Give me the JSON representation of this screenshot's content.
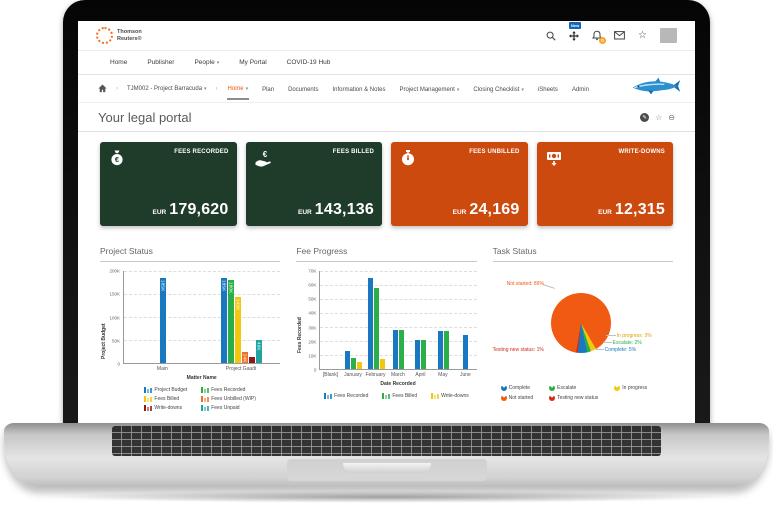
{
  "header": {
    "brand": {
      "line1": "Thomson",
      "line2": "Reuters®"
    },
    "new_badge": "New",
    "notification_count": "0"
  },
  "nav": {
    "items": [
      {
        "label": "Home"
      },
      {
        "label": "Publisher"
      },
      {
        "label": "People",
        "caret": true
      },
      {
        "label": "My Portal"
      },
      {
        "label": "COVID-19 Hub"
      }
    ]
  },
  "breadcrumb": {
    "project": "TJM002 - Project Barracuda",
    "tabs": [
      {
        "label": "Home",
        "caret": true,
        "active": true
      },
      {
        "label": "Plan"
      },
      {
        "label": "Documents"
      },
      {
        "label": "Information & Notes"
      },
      {
        "label": "Project Management",
        "caret": true
      },
      {
        "label": "Closing Checklist",
        "caret": true
      },
      {
        "label": "iSheets"
      },
      {
        "label": "Admin"
      }
    ]
  },
  "page": {
    "title": "Your legal portal"
  },
  "cards": [
    {
      "icon": "money-bag",
      "label": "FEES RECORDED",
      "currency": "EUR",
      "value": "179,620",
      "color": "#1f3b2a"
    },
    {
      "icon": "hand-euro",
      "label": "FEES BILLED",
      "currency": "EUR",
      "value": "143,136",
      "color": "#1f3b2a"
    },
    {
      "icon": "stopwatch",
      "label": "FEES UNBILLED",
      "currency": "EUR",
      "value": "24,169",
      "color": "#cc4a0d"
    },
    {
      "icon": "banknote-down",
      "label": "WRITE-DOWNS",
      "currency": "EUR",
      "value": "12,315",
      "color": "#cc4a0d"
    }
  ],
  "chart_data": [
    {
      "type": "bar",
      "title": "Project Status",
      "xlabel": "Matter Name",
      "ylabel": "Project Budget",
      "categories": [
        "Main",
        "Project Gaudi"
      ],
      "ymax": 200,
      "yticks": [
        "200K",
        "150K",
        "100K",
        "50K",
        "0"
      ],
      "legend_cols": 2,
      "series": [
        {
          "name": "Project Budget",
          "color": "#1879c0",
          "values": [
            185,
            185
          ],
          "labels": [
            "185K",
            "185K"
          ]
        },
        {
          "name": "Fees Recorded",
          "color": "#2cae49",
          "values": [
            0,
            180
          ],
          "labels": [
            "",
            "180K"
          ]
        },
        {
          "name": "Fees Billed",
          "color": "#f2c80f",
          "values": [
            0,
            143
          ],
          "labels": [
            "",
            "143K"
          ]
        },
        {
          "name": "Fees Unbilled (WIP)",
          "color": "#ee7028",
          "values": [
            0,
            24
          ],
          "labels": [
            "",
            "24K"
          ]
        },
        {
          "name": "Write-downs",
          "color": "#8f1717",
          "values": [
            0,
            12
          ],
          "labels": [
            "",
            ""
          ]
        },
        {
          "name": "Fees Unpaid",
          "color": "#1fa3a0",
          "values": [
            0,
            49
          ],
          "labels": [
            "",
            "49K"
          ]
        }
      ]
    },
    {
      "type": "bar",
      "title": "Fee Progress",
      "xlabel": "Date Recorded",
      "ylabel": "Fees Recorded",
      "categories": [
        "[Blank]",
        "January",
        "February",
        "March",
        "April",
        "May",
        "June"
      ],
      "ymax": 70,
      "yticks": [
        "70K",
        "60K",
        "50K",
        "40K",
        "30K",
        "20K",
        "10K",
        "0"
      ],
      "legend_cols": 3,
      "series": [
        {
          "name": "Fees Recorded",
          "color": "#1879c0",
          "values": [
            0,
            13,
            65,
            28,
            21,
            27,
            24
          ]
        },
        {
          "name": "Fees Billed",
          "color": "#2cae49",
          "values": [
            0,
            8,
            58,
            28,
            21,
            27,
            0
          ]
        },
        {
          "name": "Write-downs",
          "color": "#f2c80f",
          "values": [
            0,
            5,
            7,
            0,
            0,
            0,
            0
          ]
        }
      ]
    },
    {
      "type": "pie",
      "title": "Task Status",
      "start_angle": 150,
      "slices": [
        {
          "name": "In progress",
          "pct": 3,
          "color": "#f2c80f"
        },
        {
          "name": "Escalate",
          "pct": 2,
          "color": "#2cae49"
        },
        {
          "name": "Complete",
          "pct": 5,
          "color": "#1879c0"
        },
        {
          "name": "Testing new status",
          "pct": 1,
          "color": "#cf2d1b"
        },
        {
          "name": "Not started",
          "pct": 89,
          "color": "#f15a13"
        }
      ],
      "point_labels": [
        {
          "text": "Not started: 89%",
          "color": "#f15a13"
        },
        {
          "text": "In progress: 3%",
          "color": "#dda400"
        },
        {
          "text": "Escalate: 2%",
          "color": "#2cae49"
        },
        {
          "text": "Complete: 5%",
          "color": "#1879c0"
        },
        {
          "text": "Testing new status: 1%",
          "color": "#cf2d1b"
        }
      ],
      "legend": [
        {
          "name": "Complete",
          "color": "#1879c0"
        },
        {
          "name": "Escalate",
          "color": "#2cae49"
        },
        {
          "name": "In progress",
          "color": "#f2c80f"
        },
        {
          "name": "Not started",
          "color": "#f15a13"
        },
        {
          "name": "Testing new status",
          "color": "#cf2d1b"
        }
      ]
    }
  ]
}
